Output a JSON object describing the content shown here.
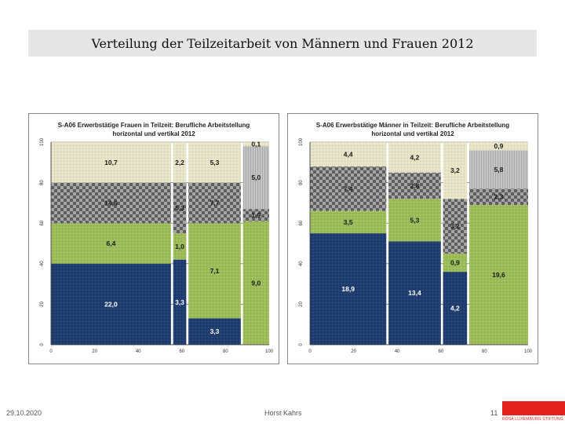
{
  "slide": {
    "title": "Verteilung der Teilzeitarbeit von Männern und Frauen 2012",
    "footer_date": "29.10.2020",
    "footer_author": "Horst Kahrs",
    "page_number": "11",
    "logo_text": "ROSA LUXEMBURG STIFTUNG"
  },
  "colors": {
    "navy": "#1f3d6e",
    "green": "#9cbb59",
    "gray_check": "#8c8c8c",
    "beige": "#e6e3c6",
    "light_gray": "#c4c4c4",
    "logo_red": "#e3231b"
  },
  "chart_data": [
    {
      "type": "bar",
      "variant": "mekko",
      "title": "S-A06 Erwerbstätige Frauen in Teilzeit: Berufliche Arbeitstellung",
      "subtitle": "horizontal und vertikal 2012",
      "xlim": [
        0,
        100
      ],
      "ylim": [
        0,
        100
      ],
      "x_ticks": [
        "0",
        "20",
        "40",
        "60",
        "80",
        "100"
      ],
      "y_ticks": [
        "0",
        "20",
        "40",
        "60",
        "80",
        "100"
      ],
      "columns": [
        {
          "x0": 0,
          "x1": 55,
          "segments": [
            {
              "label": "22,0",
              "value": 22.0,
              "y0": 0,
              "y1": 40,
              "color": "navy"
            },
            {
              "label": "6,4",
              "value": 6.4,
              "y0": 40,
              "y1": 60,
              "color": "green"
            },
            {
              "label": "14,6",
              "value": 14.6,
              "y0": 60,
              "y1": 80,
              "color": "gray_check"
            },
            {
              "label": "10,7",
              "value": 10.7,
              "y0": 80,
              "y1": 100,
              "color": "beige"
            }
          ]
        },
        {
          "x0": 56,
          "x1": 62,
          "segments": [
            {
              "label": "3,3",
              "value": 3.3,
              "y0": 0,
              "y1": 42,
              "color": "navy"
            },
            {
              "label": "1,0",
              "value": 1.0,
              "y0": 42,
              "y1": 55,
              "color": "green"
            },
            {
              "label": "5,3",
              "value": 5.3,
              "y0": 55,
              "y1": 80,
              "color": "gray_check"
            },
            {
              "label": "2,2",
              "value": 2.2,
              "y0": 80,
              "y1": 100,
              "color": "beige"
            }
          ]
        },
        {
          "x0": 63,
          "x1": 87,
          "segments": [
            {
              "label": "3,3",
              "value": 3.3,
              "y0": 0,
              "y1": 13,
              "color": "navy"
            },
            {
              "label": "7,1",
              "value": 7.1,
              "y0": 13,
              "y1": 60,
              "color": "green"
            },
            {
              "label": "7,7",
              "value": 7.7,
              "y0": 60,
              "y1": 80,
              "color": "gray_check"
            },
            {
              "label": "5,3",
              "value": 5.3,
              "y0": 80,
              "y1": 100,
              "color": "beige"
            }
          ]
        },
        {
          "x0": 88,
          "x1": 100,
          "segments": [
            {
              "label": "9,0",
              "value": 9.0,
              "y0": 0,
              "y1": 61,
              "color": "green"
            },
            {
              "label": "1,9",
              "value": 1.9,
              "y0": 61,
              "y1": 67,
              "color": "gray_check"
            },
            {
              "label": "5,0",
              "value": 5.0,
              "y0": 67,
              "y1": 98,
              "color": "light_gray"
            },
            {
              "label": "0,1",
              "value": 0.1,
              "y0": 98,
              "y1": 100,
              "color": "beige"
            }
          ]
        }
      ]
    },
    {
      "type": "bar",
      "variant": "mekko",
      "title": "S-A06 Erwerbstätige Männer in Teilzeit: Berufliche Arbeitstellung",
      "subtitle": "horizontal und vertikal 2012",
      "xlim": [
        0,
        100
      ],
      "ylim": [
        0,
        100
      ],
      "x_ticks": [
        "0",
        "20",
        "40",
        "60",
        "80",
        "100"
      ],
      "y_ticks": [
        "0",
        "20",
        "40",
        "60",
        "80",
        "100"
      ],
      "columns": [
        {
          "x0": 0,
          "x1": 35,
          "segments": [
            {
              "label": "18,9",
              "value": 18.9,
              "y0": 0,
              "y1": 55,
              "color": "navy"
            },
            {
              "label": "3,5",
              "value": 3.5,
              "y0": 55,
              "y1": 66,
              "color": "green"
            },
            {
              "label": "7,4",
              "value": 7.4,
              "y0": 66,
              "y1": 88,
              "color": "gray_check"
            },
            {
              "label": "4,4",
              "value": 4.4,
              "y0": 88,
              "y1": 100,
              "color": "beige"
            }
          ]
        },
        {
          "x0": 36,
          "x1": 60,
          "segments": [
            {
              "label": "13,4",
              "value": 13.4,
              "y0": 0,
              "y1": 51,
              "color": "navy"
            },
            {
              "label": "5,3",
              "value": 5.3,
              "y0": 51,
              "y1": 72,
              "color": "green"
            },
            {
              "label": "2,8",
              "value": 2.8,
              "y0": 72,
              "y1": 85,
              "color": "gray_check"
            },
            {
              "label": "4,2",
              "value": 4.2,
              "y0": 85,
              "y1": 100,
              "color": "beige"
            }
          ]
        },
        {
          "x0": 61,
          "x1": 72,
          "segments": [
            {
              "label": "4,2",
              "value": 4.2,
              "y0": 0,
              "y1": 36,
              "color": "navy"
            },
            {
              "label": "0,9",
              "value": 0.9,
              "y0": 36,
              "y1": 45,
              "color": "green"
            },
            {
              "label": "3,2",
              "value": 3.2,
              "y0": 45,
              "y1": 72,
              "color": "gray_check"
            },
            {
              "label": "3,2",
              "value": 3.2,
              "y0": 72,
              "y1": 100,
              "color": "beige"
            }
          ]
        },
        {
          "x0": 73,
          "x1": 100,
          "segments": [
            {
              "label": "19,6",
              "value": 19.6,
              "y0": 0,
              "y1": 69,
              "color": "green"
            },
            {
              "label": "2,3",
              "value": 2.3,
              "y0": 69,
              "y1": 77,
              "color": "gray_check"
            },
            {
              "label": "5,8",
              "value": 5.8,
              "y0": 77,
              "y1": 96,
              "color": "light_gray"
            },
            {
              "label": "0,9",
              "value": 0.9,
              "y0": 96,
              "y1": 100,
              "color": "beige"
            }
          ]
        }
      ]
    }
  ]
}
